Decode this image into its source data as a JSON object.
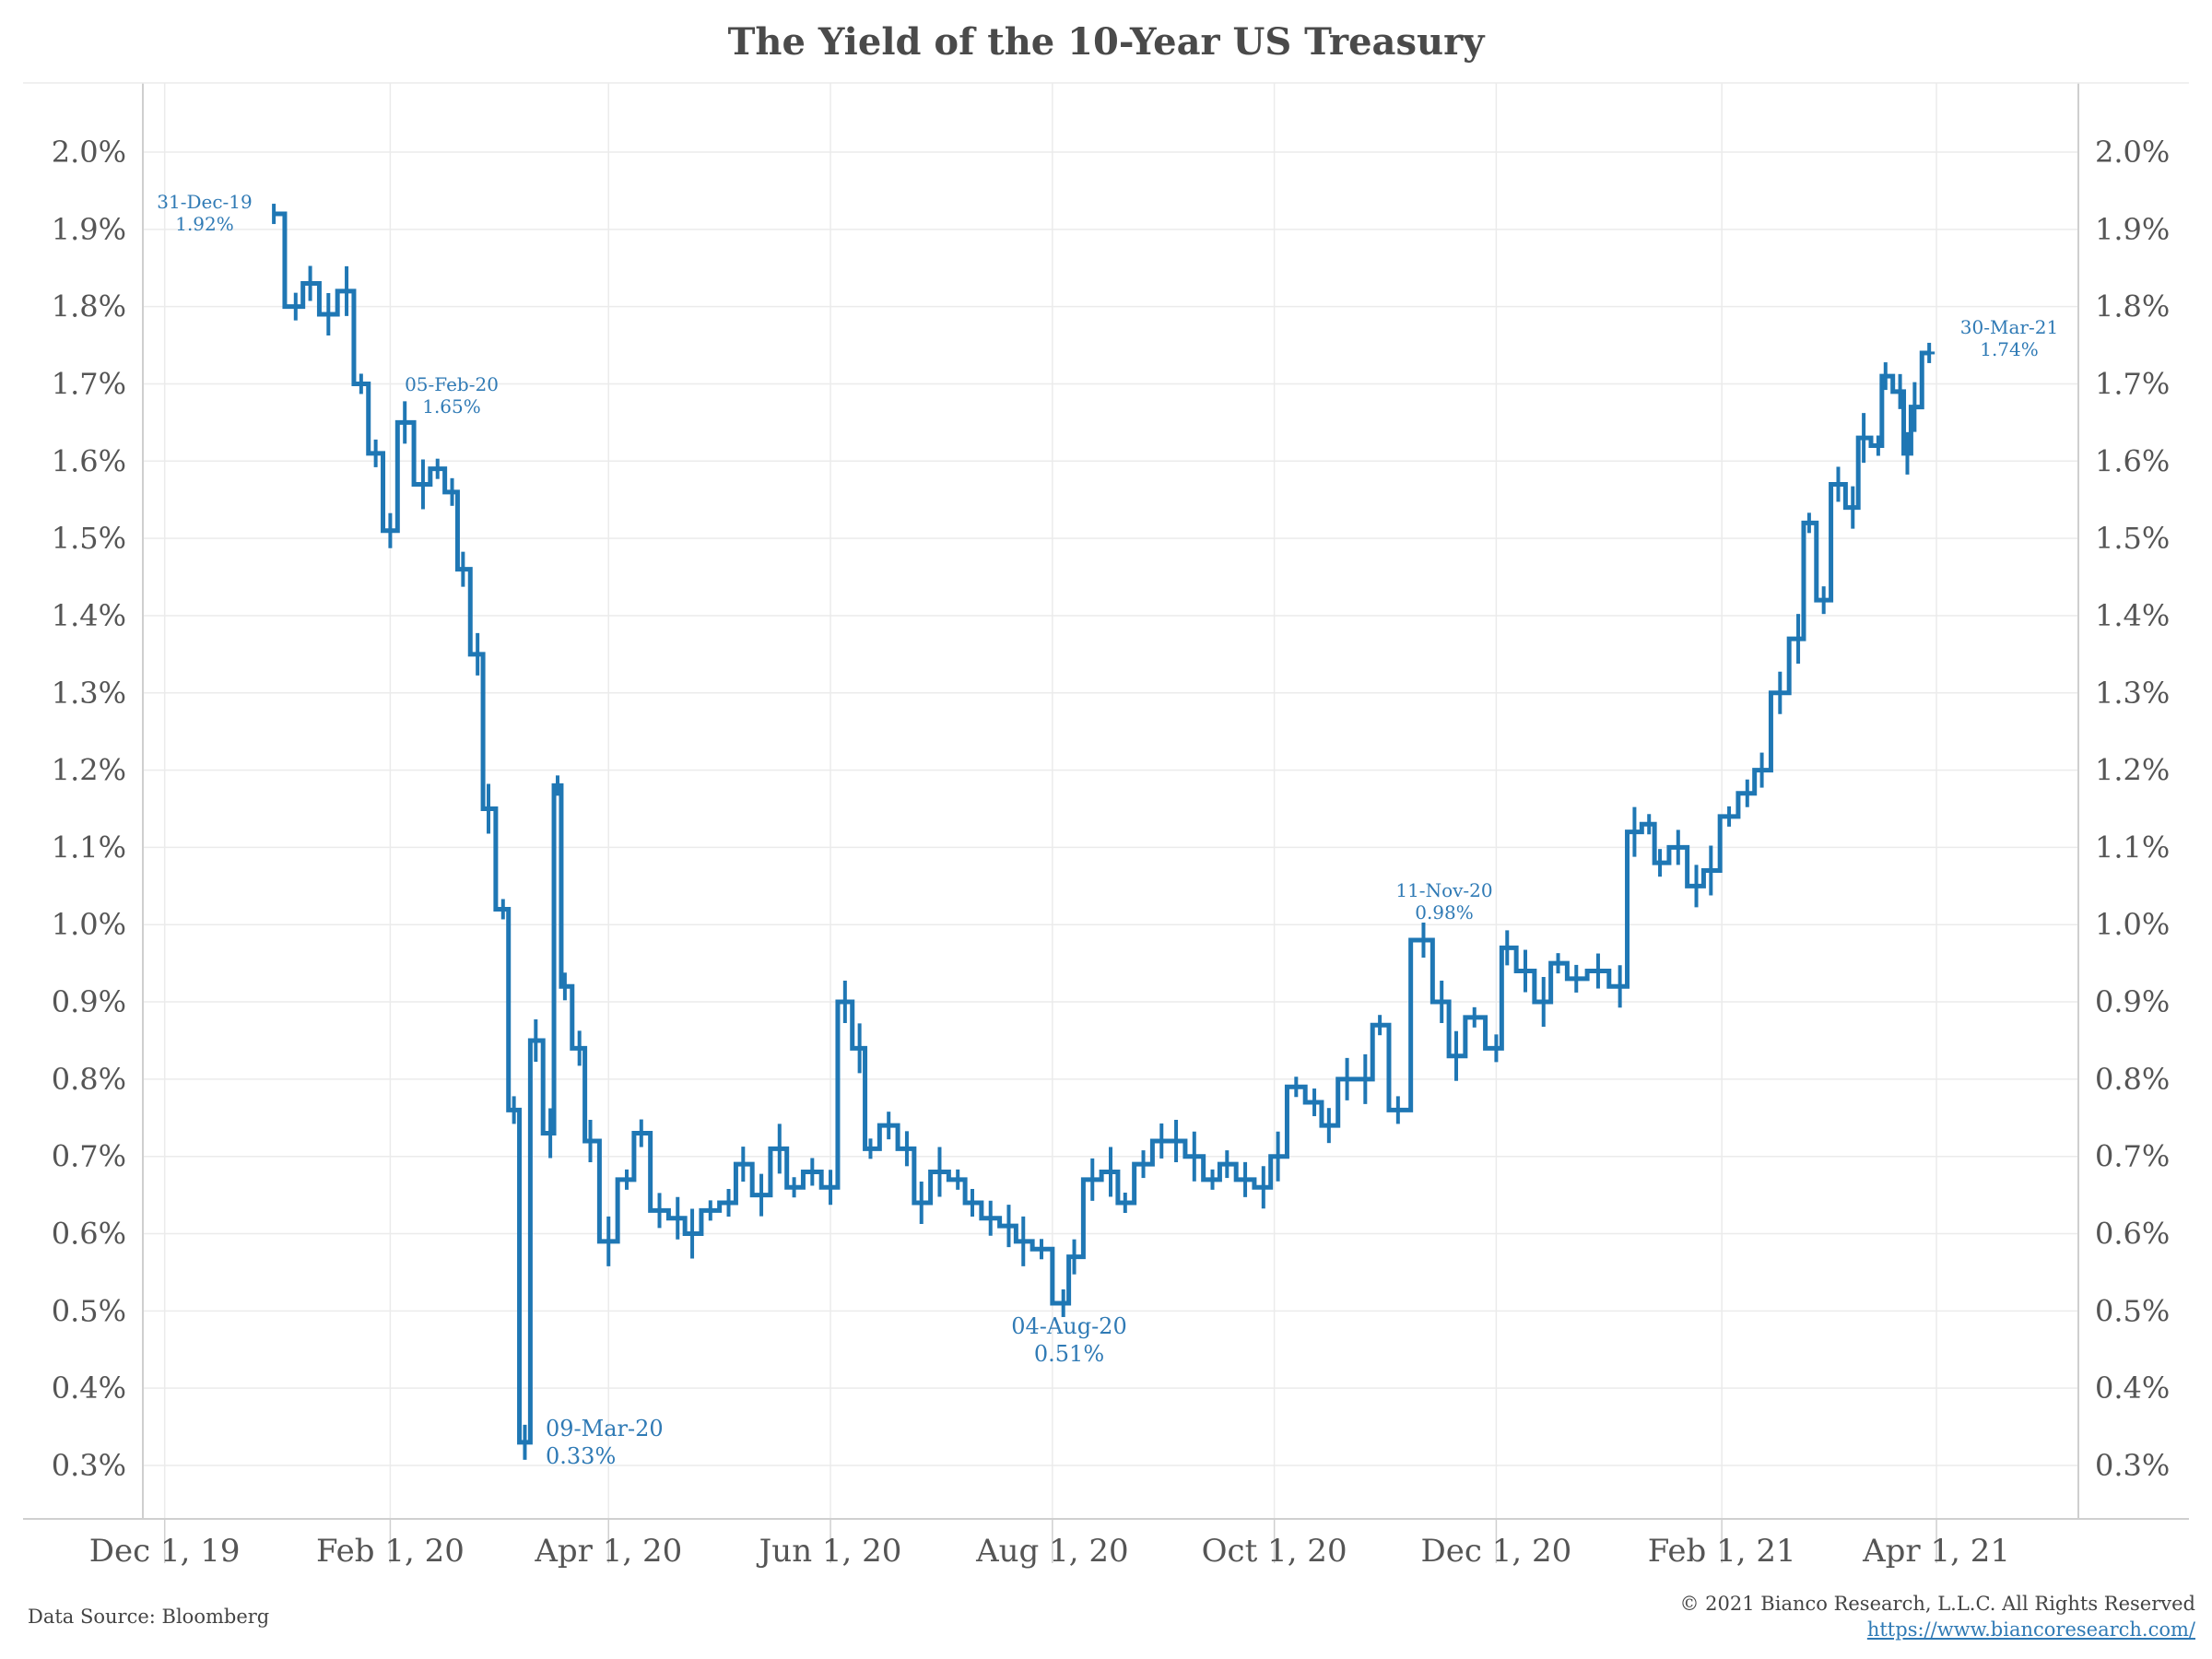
{
  "title": "The Yield of the 10-Year US Treasury",
  "footer": {
    "source": "Data Source: Bloomberg",
    "copyright": "© 2021 Bianco Research, L.L.C. All Rights Reserved",
    "website": "https://www.biancoresearch.com/"
  },
  "colors": {
    "series": "#1f77b4",
    "annotation": "#2f7ab5",
    "grid": "#ebebeb"
  },
  "chart_data": {
    "type": "line",
    "title": "The Yield of the 10-Year US Treasury",
    "xlabel": "",
    "ylabel": "",
    "ylim": [
      0.25,
      2.1
    ],
    "xlim": [
      "2019-11-25",
      "2021-05-10"
    ],
    "grid": true,
    "y_axis_sides": "both",
    "y_ticks": [
      0.003,
      0.004,
      0.005,
      0.006,
      0.007,
      0.008,
      0.009,
      0.01,
      0.011,
      0.012,
      0.013,
      0.014,
      0.015,
      0.016,
      0.017,
      0.018,
      0.019,
      0.02
    ],
    "y_tick_labels": [
      "0.3%",
      "0.4%",
      "0.5%",
      "0.6%",
      "0.7%",
      "0.8%",
      "0.9%",
      "1.0%",
      "1.1%",
      "1.2%",
      "1.3%",
      "1.4%",
      "1.5%",
      "1.6%",
      "1.7%",
      "1.8%",
      "1.9%",
      "2.0%"
    ],
    "x_ticks": [
      {
        "date": "2019-12-01",
        "label": "Dec 1, 19"
      },
      {
        "date": "2020-02-01",
        "label": "Feb 1, 20"
      },
      {
        "date": "2020-04-01",
        "label": "Apr 1, 20"
      },
      {
        "date": "2020-06-01",
        "label": "Jun 1, 20"
      },
      {
        "date": "2020-08-01",
        "label": "Aug 1, 20"
      },
      {
        "date": "2020-10-01",
        "label": "Oct 1, 20"
      },
      {
        "date": "2020-12-01",
        "label": "Dec 1, 20"
      },
      {
        "date": "2021-02-01",
        "label": "Feb 1, 21"
      },
      {
        "date": "2021-04-01",
        "label": "Apr 1, 21"
      }
    ],
    "series": [
      {
        "values": [
          [
            "2019-12-31",
            1.92
          ],
          [
            "2020-01-06",
            1.8
          ],
          [
            "2020-01-10",
            1.83
          ],
          [
            "2020-01-15",
            1.79
          ],
          [
            "2020-01-20",
            1.82
          ],
          [
            "2020-01-24",
            1.7
          ],
          [
            "2020-01-28",
            1.61
          ],
          [
            "2020-02-01",
            1.51
          ],
          [
            "2020-02-05",
            1.65
          ],
          [
            "2020-02-10",
            1.57
          ],
          [
            "2020-02-14",
            1.59
          ],
          [
            "2020-02-18",
            1.56
          ],
          [
            "2020-02-21",
            1.46
          ],
          [
            "2020-02-25",
            1.35
          ],
          [
            "2020-02-28",
            1.15
          ],
          [
            "2020-03-03",
            1.02
          ],
          [
            "2020-03-06",
            0.76
          ],
          [
            "2020-03-09",
            0.33
          ],
          [
            "2020-03-12",
            0.85
          ],
          [
            "2020-03-16",
            0.73
          ],
          [
            "2020-03-18",
            1.18
          ],
          [
            "2020-03-20",
            0.92
          ],
          [
            "2020-03-24",
            0.84
          ],
          [
            "2020-03-27",
            0.72
          ],
          [
            "2020-04-01",
            0.59
          ],
          [
            "2020-04-06",
            0.67
          ],
          [
            "2020-04-10",
            0.73
          ],
          [
            "2020-04-15",
            0.63
          ],
          [
            "2020-04-20",
            0.62
          ],
          [
            "2020-04-24",
            0.6
          ],
          [
            "2020-04-29",
            0.63
          ],
          [
            "2020-05-04",
            0.64
          ],
          [
            "2020-05-08",
            0.69
          ],
          [
            "2020-05-13",
            0.65
          ],
          [
            "2020-05-18",
            0.71
          ],
          [
            "2020-05-22",
            0.66
          ],
          [
            "2020-05-27",
            0.68
          ],
          [
            "2020-06-01",
            0.66
          ],
          [
            "2020-06-05",
            0.9
          ],
          [
            "2020-06-09",
            0.84
          ],
          [
            "2020-06-12",
            0.71
          ],
          [
            "2020-06-17",
            0.74
          ],
          [
            "2020-06-22",
            0.71
          ],
          [
            "2020-06-26",
            0.64
          ],
          [
            "2020-07-01",
            0.68
          ],
          [
            "2020-07-06",
            0.67
          ],
          [
            "2020-07-10",
            0.64
          ],
          [
            "2020-07-15",
            0.62
          ],
          [
            "2020-07-20",
            0.61
          ],
          [
            "2020-07-24",
            0.59
          ],
          [
            "2020-07-29",
            0.58
          ],
          [
            "2020-08-04",
            0.51
          ],
          [
            "2020-08-07",
            0.57
          ],
          [
            "2020-08-12",
            0.67
          ],
          [
            "2020-08-17",
            0.68
          ],
          [
            "2020-08-21",
            0.64
          ],
          [
            "2020-08-26",
            0.69
          ],
          [
            "2020-08-31",
            0.72
          ],
          [
            "2020-09-04",
            0.72
          ],
          [
            "2020-09-09",
            0.7
          ],
          [
            "2020-09-14",
            0.67
          ],
          [
            "2020-09-18",
            0.69
          ],
          [
            "2020-09-23",
            0.67
          ],
          [
            "2020-09-28",
            0.66
          ],
          [
            "2020-10-02",
            0.7
          ],
          [
            "2020-10-07",
            0.79
          ],
          [
            "2020-10-12",
            0.77
          ],
          [
            "2020-10-16",
            0.74
          ],
          [
            "2020-10-21",
            0.8
          ],
          [
            "2020-10-26",
            0.8
          ],
          [
            "2020-10-30",
            0.87
          ],
          [
            "2020-11-04",
            0.76
          ],
          [
            "2020-11-11",
            0.98
          ],
          [
            "2020-11-16",
            0.9
          ],
          [
            "2020-11-20",
            0.83
          ],
          [
            "2020-11-25",
            0.88
          ],
          [
            "2020-12-01",
            0.84
          ],
          [
            "2020-12-04",
            0.97
          ],
          [
            "2020-12-09",
            0.94
          ],
          [
            "2020-12-14",
            0.9
          ],
          [
            "2020-12-18",
            0.95
          ],
          [
            "2020-12-23",
            0.93
          ],
          [
            "2020-12-29",
            0.94
          ],
          [
            "2021-01-04",
            0.92
          ],
          [
            "2021-01-08",
            1.12
          ],
          [
            "2021-01-12",
            1.13
          ],
          [
            "2021-01-15",
            1.08
          ],
          [
            "2021-01-20",
            1.1
          ],
          [
            "2021-01-25",
            1.05
          ],
          [
            "2021-01-29",
            1.07
          ],
          [
            "2021-02-03",
            1.14
          ],
          [
            "2021-02-08",
            1.17
          ],
          [
            "2021-02-12",
            1.2
          ],
          [
            "2021-02-17",
            1.3
          ],
          [
            "2021-02-22",
            1.37
          ],
          [
            "2021-02-25",
            1.52
          ],
          [
            "2021-03-01",
            1.42
          ],
          [
            "2021-03-05",
            1.57
          ],
          [
            "2021-03-09",
            1.54
          ],
          [
            "2021-03-12",
            1.63
          ],
          [
            "2021-03-16",
            1.62
          ],
          [
            "2021-03-18",
            1.71
          ],
          [
            "2021-03-22",
            1.69
          ],
          [
            "2021-03-24",
            1.61
          ],
          [
            "2021-03-26",
            1.67
          ],
          [
            "2021-03-30",
            1.74
          ]
        ]
      }
    ],
    "annotations": [
      {
        "date_label": "31-Dec-19",
        "value_label": "1.92%",
        "date": "2019-12-31",
        "value": 1.92
      },
      {
        "date_label": "05-Feb-20",
        "value_label": "1.65%",
        "date": "2020-02-05",
        "value": 1.65
      },
      {
        "date_label": "09-Mar-20",
        "value_label": "0.33%",
        "date": "2020-03-09",
        "value": 0.33
      },
      {
        "date_label": "04-Aug-20",
        "value_label": "0.51%",
        "date": "2020-08-04",
        "value": 0.51
      },
      {
        "date_label": "11-Nov-20",
        "value_label": "0.98%",
        "date": "2020-11-11",
        "value": 0.98
      },
      {
        "date_label": "30-Mar-21",
        "value_label": "1.74%",
        "date": "2021-03-30",
        "value": 1.74
      }
    ]
  }
}
